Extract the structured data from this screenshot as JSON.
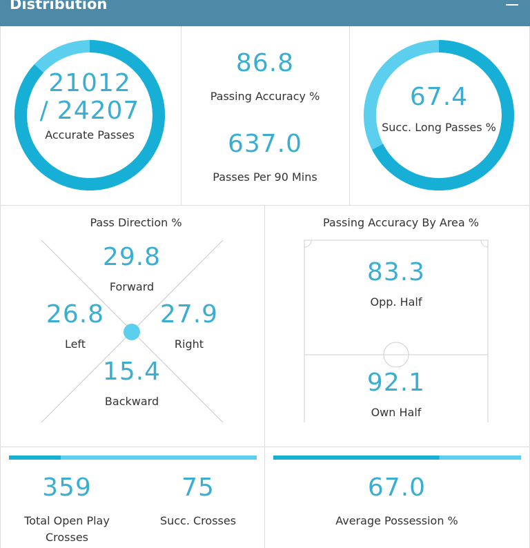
{
  "header": {
    "title": "Distribution"
  },
  "accurate_passes": {
    "accurate": 21012,
    "separator": "/",
    "total": 24207,
    "label": "Accurate Passes"
  },
  "passing_accuracy": {
    "value": 86.8,
    "label": "Passing Accuracy %"
  },
  "passes_per_90": {
    "value": {
      "value": 637,
      "label": "637.0"
    },
    "label": "Passes Per 90 Mins"
  },
  "long_passes": {
    "value": 67.4,
    "label": "Succ. Long Passes %"
  },
  "pass_direction": {
    "title": "Pass Direction %",
    "forward": {
      "value": 29.8,
      "label": "Forward"
    },
    "left": {
      "value": 26.8,
      "label": "Left"
    },
    "right": {
      "value": 27.9,
      "label": "Right"
    },
    "backward": {
      "value": 15.4,
      "label": "Backward"
    }
  },
  "accuracy_by_area": {
    "title": "Passing Accuracy By Area %",
    "opp_half": {
      "value": 83.3,
      "label": "Opp. Half"
    },
    "own_half": {
      "value": 92.1,
      "label": "Own Half"
    }
  },
  "crosses": {
    "total": 359,
    "total_label": "Total Open Play Crosses",
    "successful": 75,
    "successful_label": "Succ. Crosses"
  },
  "possession": {
    "value": {
      "value": 67,
      "label": "67.0"
    },
    "label": "Average Possession %"
  }
}
